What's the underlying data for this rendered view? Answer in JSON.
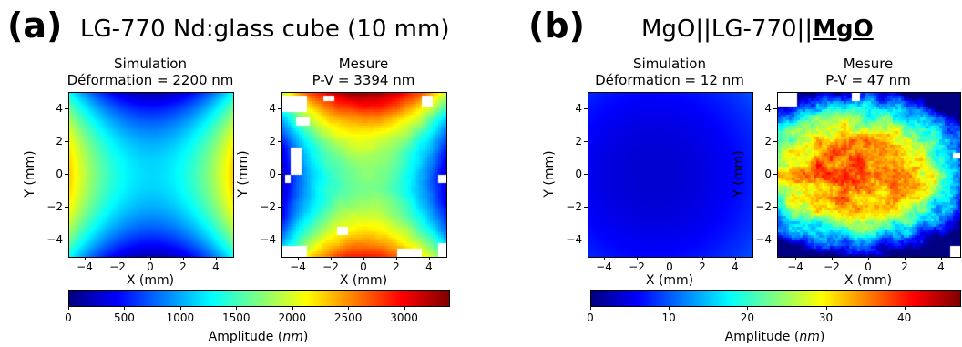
{
  "panels": [
    {
      "letter": "(a)",
      "title": "LG-770 Nd:glass cube (10 mm)",
      "title_bold": ""
    },
    {
      "letter": "(b)",
      "title": "MgO||LG-770||",
      "title_bold": "MgO"
    }
  ],
  "chart_data": [
    {
      "type": "heatmap",
      "panel": "(a)",
      "title": "Simulation",
      "subtitle": "Déformation = 2200 nm",
      "xlabel": "X (mm)",
      "ylabel": "Y (mm)",
      "xticks": [
        -4,
        -2,
        0,
        2,
        4
      ],
      "yticks": [
        4,
        2,
        0,
        -2,
        -4
      ],
      "xlim": [
        -5,
        5
      ],
      "ylim": [
        -5,
        5
      ],
      "colormap": "jet",
      "pattern": "saddle, low at top and bottom edges, high at left and right edges",
      "value_range": [
        0,
        2200
      ]
    },
    {
      "type": "heatmap",
      "panel": "(a)",
      "title": "Mesure",
      "subtitle": "P-V = 3394 nm",
      "xlabel": "X (mm)",
      "ylabel": "Y (mm)",
      "xticks": [
        -4,
        -2,
        0,
        2,
        4
      ],
      "yticks": [
        4,
        2,
        0,
        -2,
        -4
      ],
      "xlim": [
        -5,
        5
      ],
      "ylim": [
        -5,
        5
      ],
      "colormap": "jet",
      "pattern": "saddle, high at top and bottom edges, low at left and right edges",
      "value_range": [
        0,
        3394
      ]
    },
    {
      "type": "heatmap",
      "panel": "(b)",
      "title": "Simulation",
      "subtitle": "Déformation = 12 nm",
      "xlabel": "X (mm)",
      "ylabel": "Y (mm)",
      "xticks": [
        -4,
        -2,
        0,
        2,
        4
      ],
      "yticks": [
        4,
        2,
        0,
        -2,
        -4
      ],
      "xlim": [
        -5,
        5
      ],
      "ylim": [
        -5,
        5
      ],
      "colormap": "jet",
      "pattern": "nearly uniform low, minimum at centre",
      "value_range": [
        0,
        12
      ]
    },
    {
      "type": "heatmap",
      "panel": "(b)",
      "title": "Mesure",
      "subtitle": "P-V = 47 nm",
      "xlabel": "X (mm)",
      "ylabel": "Y (mm)",
      "xticks": [
        -4,
        -2,
        0,
        2,
        4
      ],
      "yticks": [
        4,
        2,
        0,
        -2,
        -4
      ],
      "xlim": [
        -5,
        5
      ],
      "ylim": [
        -5,
        5
      ],
      "colormap": "jet",
      "pattern": "noisy, maximum near centre-left, low at top and bottom edges",
      "value_range": [
        0,
        47
      ]
    },
    {
      "type": "colorbar",
      "panel": "(a)",
      "label": "Amplitude (nm)",
      "label_text": "Amplitude (",
      "label_unit": "nm",
      "label_close": ")",
      "range": [
        0,
        3394
      ],
      "ticks": [
        0,
        500,
        1000,
        1500,
        2000,
        2500,
        3000
      ],
      "colormap": "jet"
    },
    {
      "type": "colorbar",
      "panel": "(b)",
      "label": "Amplitude (nm)",
      "label_text": "Amplitude (",
      "label_unit": "nm",
      "label_close": ")",
      "range": [
        0,
        47
      ],
      "ticks": [
        0,
        10,
        20,
        30,
        40
      ],
      "colormap": "jet"
    }
  ]
}
